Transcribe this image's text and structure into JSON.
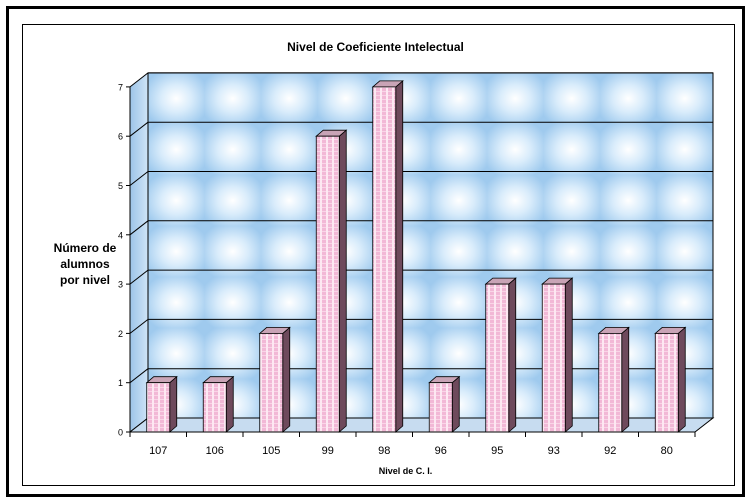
{
  "chart_data": {
    "type": "bar",
    "title": "Nivel de Coeficiente Intelectual",
    "ylabel_lines": [
      "Número de",
      "alumnos",
      "por nivel"
    ],
    "xlabel": "Nivel de C. I.",
    "categories": [
      "107",
      "106",
      "105",
      "99",
      "98",
      "96",
      "95",
      "93",
      "92",
      "80"
    ],
    "values": [
      1,
      1,
      2,
      6,
      7,
      1,
      3,
      3,
      2,
      2
    ],
    "ylim": [
      0,
      7
    ],
    "yticks": [
      "0",
      "1",
      "2",
      "3",
      "4",
      "5",
      "6",
      "7"
    ],
    "grid": true,
    "style": "3d-column",
    "colors": {
      "bar_front": "#f2b8d6",
      "bar_stripe": "#fbe3ef",
      "bar_side": "#6e4a5c",
      "bar_top": "#c9a4b6",
      "wall": "#aed4f2",
      "wall_light": "#ffffff",
      "floor": "#c7dcf0"
    }
  }
}
